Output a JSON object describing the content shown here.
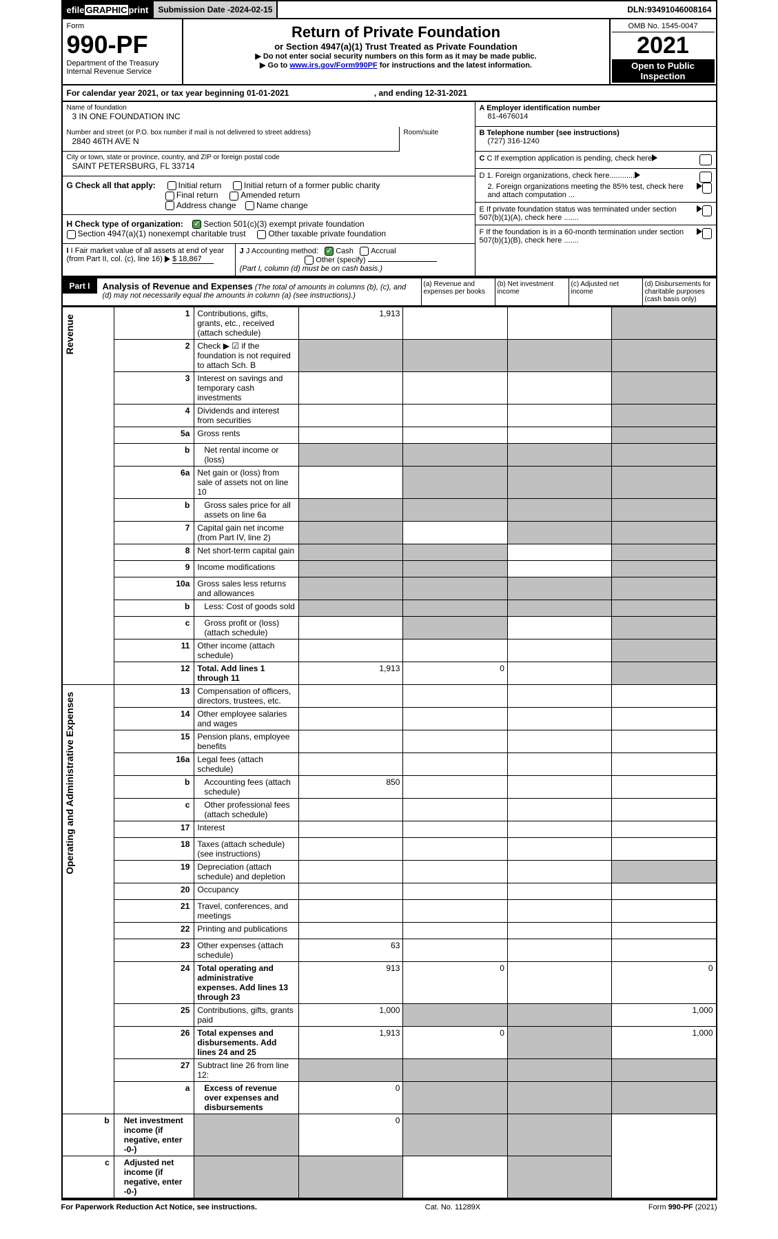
{
  "topbar": {
    "efile_prefix": "efile",
    "efile_text": " GRAPHIC ",
    "print": "print",
    "subdate_label": "Submission Date - ",
    "subdate_val": "2024-02-15",
    "dln_label": "DLN: ",
    "dln_val": "93491046008164"
  },
  "header": {
    "form_label": "Form",
    "form_num": "990-PF",
    "dept1": "Department of the Treasury",
    "dept2": "Internal Revenue Service",
    "title": "Return of Private Foundation",
    "subtitle": "or Section 4947(a)(1) Trust Treated as Private Foundation",
    "note1": "▶ Do not enter social security numbers on this form as it may be made public.",
    "note2_pre": "▶ Go to ",
    "note2_link": "www.irs.gov/Form990PF",
    "note2_post": " for instructions and the latest information.",
    "omb": "OMB No. 1545-0047",
    "year": "2021",
    "open": "Open to Public Inspection"
  },
  "calyear": {
    "text_pre": "For calendar year 2021, or tax year beginning ",
    "begin": "01-01-2021",
    "text_mid": " , and ending ",
    "end": "12-31-2021"
  },
  "foundation": {
    "name_label": "Name of foundation",
    "name": "3 IN ONE FOUNDATION INC",
    "addr_label": "Number and street (or P.O. box number if mail is not delivered to street address)",
    "addr": "2840 46TH AVE N",
    "room_label": "Room/suite",
    "city_label": "City or town, state or province, country, and ZIP or foreign postal code",
    "city": "SAINT PETERSBURG, FL  33714"
  },
  "right_info": {
    "a_label": "A Employer identification number",
    "a_val": "81-4676014",
    "b_label": "B Telephone number (see instructions)",
    "b_val": "(727) 316-1240",
    "c_label": "C If exemption application is pending, check here",
    "d1": "D 1. Foreign organizations, check here............",
    "d2": "2. Foreign organizations meeting the 85% test, check here and attach computation ...",
    "e_label": "E  If private foundation status was terminated under section 507(b)(1)(A), check here .......",
    "f_label": "F  If the foundation is in a 60-month termination under section 507(b)(1)(B), check here .......",
    "g_label": "G Check all that apply:",
    "g_opts": [
      "Initial return",
      "Initial return of a former public charity",
      "Final return",
      "Amended return",
      "Address change",
      "Name change"
    ],
    "h_label": "H Check type of organization:",
    "h_opts": [
      "Section 501(c)(3) exempt private foundation",
      "Section 4947(a)(1) nonexempt charitable trust",
      "Other taxable private foundation"
    ],
    "i_label": "I Fair market value of all assets at end of year (from Part II, col. (c), line 16) ",
    "i_val": "$  18,867",
    "j_label": "J Accounting method:",
    "j_opts": [
      "Cash",
      "Accrual",
      "Other (specify)"
    ],
    "j_note": "(Part I, column (d) must be on cash basis.)"
  },
  "part1": {
    "label": "Part I",
    "title": "Analysis of Revenue and Expenses",
    "desc": " (The total of amounts in columns (b), (c), and (d) may not necessarily equal the amounts in column (a) (see instructions).)",
    "col_a": "(a)   Revenue and expenses per books",
    "col_b": "(b)   Net investment income",
    "col_c": "(c)   Adjusted net income",
    "col_d": "(d)   Disbursements for charitable purposes (cash basis only)"
  },
  "vert_labels": {
    "revenue": "Revenue",
    "expenses": "Operating and Administrative Expenses"
  },
  "rows": [
    {
      "n": "1",
      "label": "Contributions, gifts, grants, etc., received (attach schedule)",
      "a": "1,913",
      "d_shade": true
    },
    {
      "n": "2",
      "label": "Check ▶ ☑ if the foundation is not required to attach Sch. B",
      "allshade": true
    },
    {
      "n": "3",
      "label": "Interest on savings and temporary cash investments",
      "d_shade": true
    },
    {
      "n": "4",
      "label": "Dividends and interest from securities",
      "d_shade": true
    },
    {
      "n": "5a",
      "label": "Gross rents",
      "d_shade": true
    },
    {
      "n": "b",
      "label": "Net rental income or (loss)",
      "allshade": true,
      "indent": true
    },
    {
      "n": "6a",
      "label": "Net gain or (loss) from sale of assets not on line 10",
      "bcd_shade": true
    },
    {
      "n": "b",
      "label": "Gross sales price for all assets on line 6a",
      "allshade": true,
      "indent": true
    },
    {
      "n": "7",
      "label": "Capital gain net income (from Part IV, line 2)",
      "acd_shade": true
    },
    {
      "n": "8",
      "label": "Net short-term capital gain",
      "abd_shade": true
    },
    {
      "n": "9",
      "label": "Income modifications",
      "abd_shade": true
    },
    {
      "n": "10a",
      "label": "Gross sales less returns and allowances",
      "allshade": true
    },
    {
      "n": "b",
      "label": "Less: Cost of goods sold",
      "allshade": true,
      "indent": true
    },
    {
      "n": "c",
      "label": "Gross profit or (loss) (attach schedule)",
      "bd_shade": true,
      "indent": true
    },
    {
      "n": "11",
      "label": "Other income (attach schedule)",
      "d_shade": true
    },
    {
      "n": "12",
      "label": "Total. Add lines 1 through 11",
      "bold": true,
      "a": "1,913",
      "b": "0",
      "d_shade": true
    },
    {
      "n": "13",
      "label": "Compensation of officers, directors, trustees, etc."
    },
    {
      "n": "14",
      "label": "Other employee salaries and wages"
    },
    {
      "n": "15",
      "label": "Pension plans, employee benefits"
    },
    {
      "n": "16a",
      "label": "Legal fees (attach schedule)"
    },
    {
      "n": "b",
      "label": "Accounting fees (attach schedule)",
      "a": "850",
      "indent": true
    },
    {
      "n": "c",
      "label": "Other professional fees (attach schedule)",
      "indent": true
    },
    {
      "n": "17",
      "label": "Interest"
    },
    {
      "n": "18",
      "label": "Taxes (attach schedule) (see instructions)"
    },
    {
      "n": "19",
      "label": "Depreciation (attach schedule) and depletion",
      "d_shade": true
    },
    {
      "n": "20",
      "label": "Occupancy"
    },
    {
      "n": "21",
      "label": "Travel, conferences, and meetings"
    },
    {
      "n": "22",
      "label": "Printing and publications"
    },
    {
      "n": "23",
      "label": "Other expenses (attach schedule)",
      "a": "63"
    },
    {
      "n": "24",
      "label": "Total operating and administrative expenses. Add lines 13 through 23",
      "bold": true,
      "a": "913",
      "b": "0",
      "d": "0"
    },
    {
      "n": "25",
      "label": "Contributions, gifts, grants paid",
      "a": "1,000",
      "d": "1,000",
      "bc_shade": true
    },
    {
      "n": "26",
      "label": "Total expenses and disbursements. Add lines 24 and 25",
      "bold": true,
      "a": "1,913",
      "b": "0",
      "d": "1,000",
      "c_shade": true
    },
    {
      "n": "27",
      "label": "Subtract line 26 from line 12:",
      "allshade": true
    },
    {
      "n": "a",
      "label": "Excess of revenue over expenses and disbursements",
      "bold": true,
      "a": "0",
      "bcd_shade": true,
      "indent": true
    },
    {
      "n": "b",
      "label": "Net investment income (if negative, enter -0-)",
      "bold": true,
      "b": "0",
      "a_shade": true,
      "cd_shade": true,
      "indent": true
    },
    {
      "n": "c",
      "label": "Adjusted net income (if negative, enter -0-)",
      "bold": true,
      "abd_shade": true,
      "indent": true
    }
  ],
  "footer": {
    "left": "For Paperwork Reduction Act Notice, see instructions.",
    "mid": "Cat. No. 11289X",
    "right": "Form 990-PF (2021)"
  }
}
